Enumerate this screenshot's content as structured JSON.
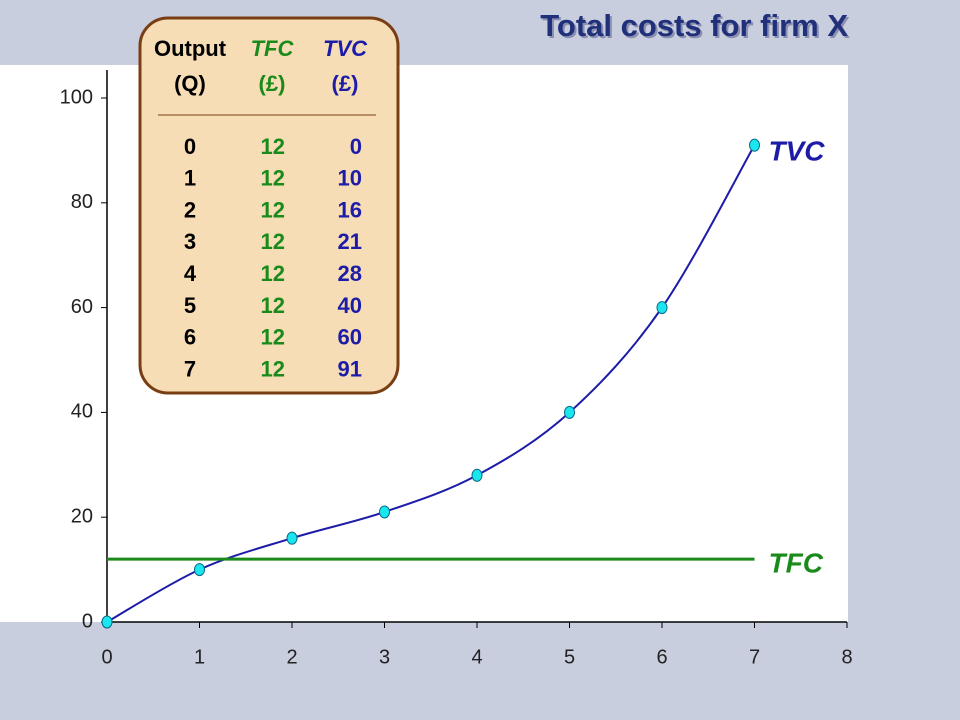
{
  "chart_data": {
    "type": "line",
    "title": "Total costs for firm X",
    "x": [
      0,
      1,
      2,
      3,
      4,
      5,
      6,
      7
    ],
    "series": [
      {
        "name": "TVC",
        "color": "#1c1ca8",
        "values": [
          0,
          10,
          16,
          21,
          28,
          40,
          60,
          91
        ]
      },
      {
        "name": "TFC",
        "color": "#1a8a1a",
        "values": [
          12,
          12,
          12,
          12,
          12,
          12,
          12,
          12
        ]
      }
    ],
    "xlim": [
      0,
      8
    ],
    "xticks": [
      0,
      1,
      2,
      3,
      4,
      5,
      6,
      7,
      8
    ],
    "ylim": [
      0,
      100
    ],
    "yticks": [
      0,
      20,
      40,
      60,
      80,
      100
    ]
  },
  "table": {
    "headers": [
      [
        "Output",
        "(Q)"
      ],
      [
        "TFC",
        "(£)"
      ],
      [
        "TVC",
        "(£)"
      ]
    ]
  }
}
